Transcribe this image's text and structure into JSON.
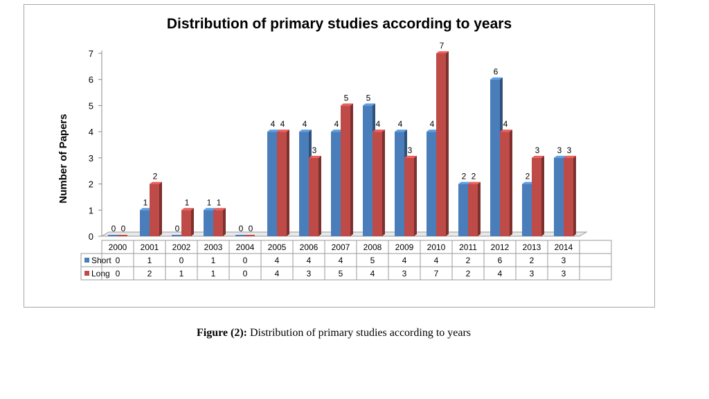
{
  "caption": {
    "prefix": "Figure (2):",
    "text": "Distribution of primary studies according to years"
  },
  "chart_data": {
    "type": "bar",
    "title": "Distribution of primary studies according to years",
    "xlabel": "",
    "ylabel": "Number of Papers",
    "ylim": [
      0,
      7
    ],
    "yticks": [
      "0",
      "1",
      "2",
      "3",
      "4",
      "5",
      "6",
      "7"
    ],
    "categories": [
      "2000",
      "2001",
      "2002",
      "2003",
      "2004",
      "2005",
      "2006",
      "2007",
      "2008",
      "2009",
      "2010",
      "2011",
      "2012",
      "2013",
      "2014"
    ],
    "series": [
      {
        "name": "Short",
        "color": "#4a7ebb",
        "values": [
          0,
          1,
          0,
          1,
          0,
          4,
          4,
          4,
          5,
          4,
          4,
          2,
          6,
          2,
          3
        ]
      },
      {
        "name": "Long",
        "color": "#be4b48",
        "values": [
          0,
          2,
          1,
          1,
          0,
          4,
          3,
          5,
          4,
          3,
          7,
          2,
          4,
          3,
          3
        ]
      }
    ],
    "legend": "data-table-left",
    "grid": false,
    "style": "3d-column-with-data-table"
  }
}
